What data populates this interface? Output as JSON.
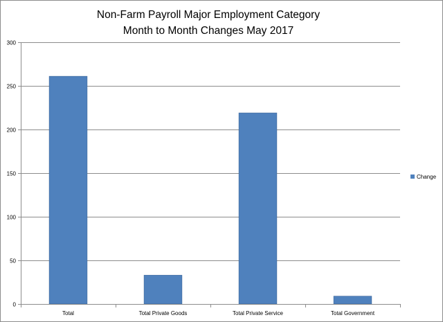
{
  "chart_data": {
    "type": "bar",
    "title_lines": [
      "Non-Farm Payroll Major Employment Category",
      "Month to Month Changes May 2017"
    ],
    "categories": [
      "Total",
      "Total Private Goods",
      "Total Private Service",
      "Total Government"
    ],
    "series": [
      {
        "name": "Change",
        "values": [
          261,
          33,
          219,
          9
        ]
      }
    ],
    "ylim": [
      0,
      300
    ],
    "yticks": [
      0,
      50,
      100,
      150,
      200,
      250,
      300
    ],
    "grid": true,
    "legend_position": "right",
    "colors": {
      "bar": "#4f81bd",
      "bar_edge": "#3a6598",
      "grid": "#8c8c8c",
      "axis": "#8c8c8c"
    }
  }
}
